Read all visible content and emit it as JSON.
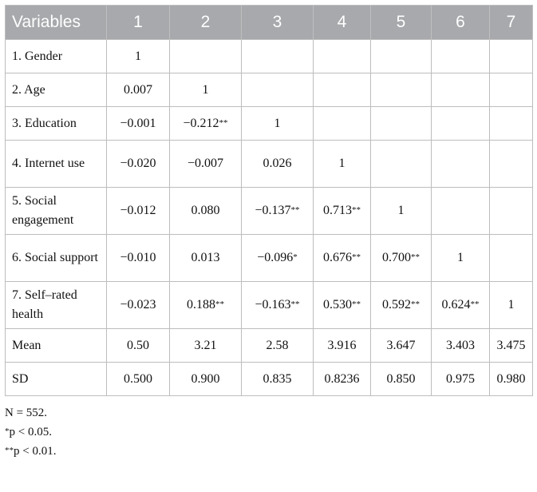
{
  "table": {
    "headers": [
      "Variables",
      "1",
      "2",
      "3",
      "4",
      "5",
      "6",
      "7"
    ],
    "rows": [
      {
        "label": "1. Gender",
        "cells": [
          "1",
          "",
          "",
          "",
          "",
          "",
          ""
        ],
        "tall": false
      },
      {
        "label": "2. Age",
        "cells": [
          "0.007",
          "1",
          "",
          "",
          "",
          "",
          ""
        ],
        "tall": false
      },
      {
        "label": "3. Education",
        "cells": [
          "−0.001",
          "−0.212**",
          "1",
          "",
          "",
          "",
          ""
        ],
        "tall": false
      },
      {
        "label": "4. Internet use",
        "cells": [
          "−0.020",
          "−0.007",
          "0.026",
          "1",
          "",
          "",
          ""
        ],
        "tall": true
      },
      {
        "label": "5. Social engagement",
        "cells": [
          "−0.012",
          "0.080",
          "−0.137**",
          "0.713**",
          "1",
          "",
          ""
        ],
        "tall": true
      },
      {
        "label": "6. Social support",
        "cells": [
          "−0.010",
          "0.013",
          "−0.096*",
          "0.676**",
          "0.700**",
          "1",
          ""
        ],
        "tall": true
      },
      {
        "label": "7. Self–rated health",
        "cells": [
          "−0.023",
          "0.188**",
          "−0.163**",
          "0.530**",
          "0.592**",
          "0.624**",
          "1"
        ],
        "tall": true
      },
      {
        "label": "Mean",
        "cells": [
          "0.50",
          "3.21",
          "2.58",
          "3.916",
          "3.647",
          "3.403",
          "3.475"
        ],
        "tall": false
      },
      {
        "label": "SD",
        "cells": [
          "0.500",
          "0.900",
          "0.835",
          "0.8236",
          "0.850",
          "0.975",
          "0.980"
        ],
        "tall": false
      }
    ]
  },
  "notes": {
    "n": "N = 552.",
    "p05": "*p < 0.05.",
    "p01": "**p < 0.01."
  },
  "colors": {
    "header_bg": "#a7a9ac",
    "header_text": "#ffffff",
    "border": "#bdbdbd"
  }
}
